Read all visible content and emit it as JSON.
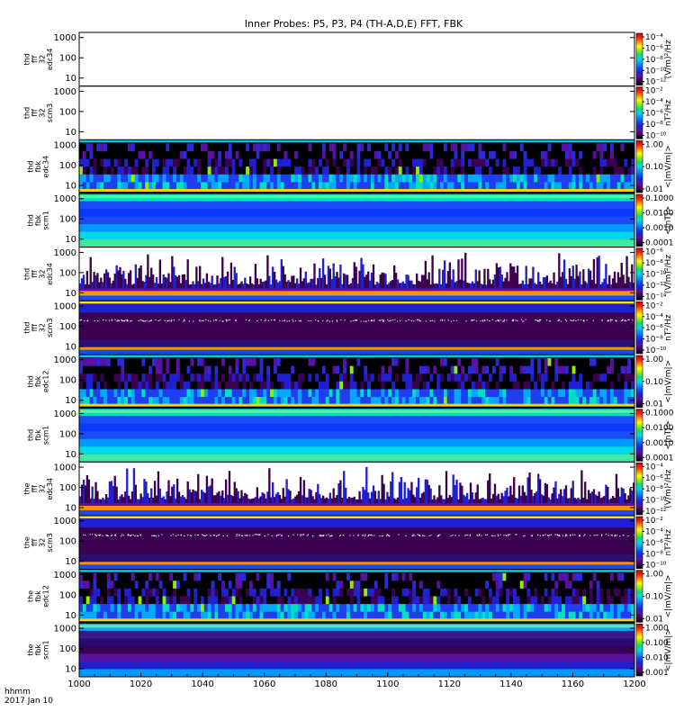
{
  "title": "Inner Probes: P5, P3, P4 (TH-A,D,E) FFT, FBK",
  "x_ticks": [
    "1000",
    "1020",
    "1040",
    "1060",
    "1080",
    "1100",
    "1120",
    "1140",
    "1160",
    "1200"
  ],
  "y_ticks": [
    "10",
    "100",
    "1000"
  ],
  "footer": {
    "line1": "hhmm",
    "line2": "2017 Jan 10"
  },
  "colors": {
    "scale": [
      "#000000",
      "#3c0050",
      "#5a10a0",
      "#2020d0",
      "#0050ff",
      "#0099ff",
      "#00d8e8",
      "#00e080",
      "#90f000",
      "#ffff00",
      "#ff9000",
      "#ff2000",
      "#cc0000"
    ]
  },
  "chart_data": {
    "type": "heatmap",
    "x_range": [
      "1000",
      "1200"
    ],
    "x_ticks": [
      "1000",
      "1020",
      "1040",
      "1060",
      "1080",
      "1100",
      "1120",
      "1140",
      "1160",
      "1200"
    ],
    "y_scale": "log",
    "panels": [
      {
        "id": "p1",
        "label": [
          "thd",
          "fff",
          "32",
          "edc34"
        ],
        "fill": "empty",
        "cb_ticks": [
          "10⁻⁴",
          "10⁻⁶",
          "10⁻⁸",
          "10⁻¹⁰",
          "10⁻¹²"
        ],
        "cb_unit": "(V/m)²/Hz"
      },
      {
        "id": "p2",
        "label": [
          "thd",
          "fff",
          "32",
          "scm3"
        ],
        "fill": "empty",
        "cb_ticks": [
          "10⁻²",
          "10⁻⁴",
          "10⁻⁶",
          "10⁻⁸",
          "10⁻¹⁰"
        ],
        "cb_unit": "nT²/Hz"
      },
      {
        "id": "p3",
        "label": [
          "thd",
          "fbk",
          "edc34"
        ],
        "fill": "fbk_e",
        "cb_ticks": [
          "1.00",
          "0.10",
          "0.01"
        ],
        "cb_unit": "<|mV/m|>"
      },
      {
        "id": "p4",
        "label": [
          "thd",
          "fbk",
          "scm1"
        ],
        "fill": "fbk_b",
        "cb_ticks": [
          "0.1000",
          "0.0100",
          "0.0010",
          "0.0001"
        ],
        "cb_unit": "<|nT|>"
      },
      {
        "id": "p5",
        "label": [
          "thd",
          "fff",
          "32",
          "edc34"
        ],
        "fill": "fff_e",
        "cb_ticks": [
          "10⁻⁶",
          "10⁻⁸",
          "10⁻¹⁰",
          "10⁻¹²",
          "10⁻¹⁴"
        ],
        "cb_unit": "(V/m)²/Hz"
      },
      {
        "id": "p6",
        "label": [
          "thd",
          "fff",
          "32",
          "scm3"
        ],
        "fill": "fff_b",
        "cb_ticks": [
          "10⁻²",
          "10⁻⁴",
          "10⁻⁶",
          "10⁻⁸",
          "10⁻¹⁰"
        ],
        "cb_unit": "nT²/Hz"
      },
      {
        "id": "p7",
        "label": [
          "thd",
          "fbk",
          "edc12"
        ],
        "fill": "fbk_e",
        "cb_ticks": [
          "1.00",
          "0.10",
          "0.01"
        ],
        "cb_unit": "<|mV/m|>"
      },
      {
        "id": "p8",
        "label": [
          "thd",
          "fbk",
          "scm1"
        ],
        "fill": "fbk_b",
        "cb_ticks": [
          "0.1000",
          "0.0100",
          "0.0010",
          "0.0001"
        ],
        "cb_unit": "<|nT|>"
      },
      {
        "id": "p9",
        "label": [
          "the",
          "fff",
          "32",
          "edc34"
        ],
        "fill": "fff_e",
        "cb_ticks": [
          "10⁻⁴",
          "10⁻⁶",
          "10⁻⁸",
          "10⁻¹⁰",
          "10⁻¹²"
        ],
        "cb_unit": "(V/m)²/Hz"
      },
      {
        "id": "p10",
        "label": [
          "the",
          "fff",
          "32",
          "scm3"
        ],
        "fill": "fff_b",
        "cb_ticks": [
          "10⁻²",
          "10⁻⁴",
          "10⁻⁶",
          "10⁻⁸",
          "10⁻¹⁰"
        ],
        "cb_unit": "nT²/Hz"
      },
      {
        "id": "p11",
        "label": [
          "the",
          "fbk",
          "edc12"
        ],
        "fill": "fbk_e",
        "cb_ticks": [
          "1.00",
          "0.10",
          "0.01"
        ],
        "cb_unit": "<|mV/m|>"
      },
      {
        "id": "p12",
        "label": [
          "the",
          "fbk",
          "scm1"
        ],
        "fill": "fbk_b2",
        "cb_ticks": [
          "1.000",
          "0.100",
          "0.010",
          "0.001"
        ],
        "cb_unit": "<|mV/m|>"
      }
    ]
  }
}
